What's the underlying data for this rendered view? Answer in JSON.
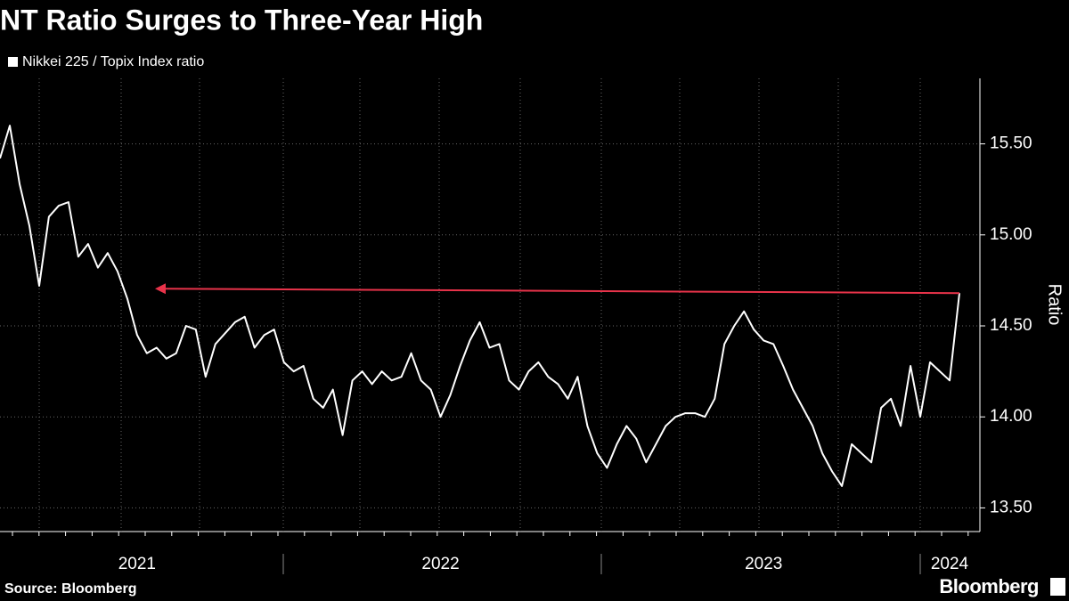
{
  "chart_data": {
    "type": "line",
    "title": "NT Ratio Surges to Three-Year High",
    "legend_label": "Nikkei 225 / Topix Index ratio",
    "y_label": "Ratio",
    "source": "Source: Bloomberg",
    "brand": "Bloomberg",
    "categories": [
      null,
      null,
      null,
      null,
      null,
      null,
      null,
      null,
      null,
      null,
      null,
      null,
      null,
      null,
      "2021",
      null,
      null,
      null,
      null,
      null,
      null,
      null,
      null,
      null,
      null,
      null,
      null,
      null,
      null,
      null,
      null,
      null,
      null,
      null,
      null,
      null,
      null,
      null,
      null,
      null,
      null,
      null,
      null,
      null,
      null,
      "2022",
      null,
      null,
      null,
      null,
      null,
      null,
      null,
      null,
      null,
      null,
      null,
      null,
      null,
      null,
      null,
      null,
      null,
      null,
      null,
      null,
      null,
      null,
      null,
      null,
      null,
      null,
      null,
      null,
      null,
      null,
      null,
      null,
      "2023",
      null,
      null,
      null,
      null,
      null,
      null,
      null,
      null,
      null,
      null,
      null,
      null,
      null,
      null,
      null,
      null,
      null,
      null,
      "2024",
      null
    ],
    "series": [
      {
        "name": "Nikkei 225 / Topix Index ratio",
        "color": "#ffffff",
        "values": [
          15.42,
          15.6,
          15.28,
          15.05,
          14.72,
          15.1,
          15.16,
          15.18,
          14.88,
          14.95,
          14.82,
          14.9,
          14.8,
          14.65,
          14.45,
          14.35,
          14.38,
          14.32,
          14.35,
          14.5,
          14.48,
          14.22,
          14.4,
          14.46,
          14.52,
          14.55,
          14.38,
          14.45,
          14.48,
          14.3,
          14.25,
          14.28,
          14.1,
          14.05,
          14.15,
          13.9,
          14.2,
          14.25,
          14.18,
          14.25,
          14.2,
          14.22,
          14.35,
          14.2,
          14.15,
          14.0,
          14.12,
          14.28,
          14.42,
          14.52,
          14.38,
          14.4,
          14.2,
          14.15,
          14.25,
          14.3,
          14.22,
          14.18,
          14.1,
          14.22,
          13.95,
          13.8,
          13.72,
          13.85,
          13.95,
          13.88,
          13.75,
          13.85,
          13.95,
          14.0,
          14.02,
          14.02,
          14.0,
          14.1,
          14.4,
          14.5,
          14.58,
          14.48,
          14.42,
          14.4,
          14.28,
          14.15,
          14.05,
          13.95,
          13.8,
          13.7,
          13.62,
          13.85,
          13.8,
          13.75,
          14.05,
          14.1,
          13.95,
          14.28,
          14.0,
          14.3,
          14.25,
          14.2,
          14.68
        ]
      }
    ],
    "ylim": [
      13.37,
      15.86
    ],
    "yticks": [
      {
        "value": 13.5,
        "label": "13.50"
      },
      {
        "value": 14,
        "label": "14.00"
      },
      {
        "value": 14.5,
        "label": "14.50"
      },
      {
        "value": 15,
        "label": "15.00"
      },
      {
        "value": 15.5,
        "label": "15.50"
      }
    ],
    "grid": true
  }
}
